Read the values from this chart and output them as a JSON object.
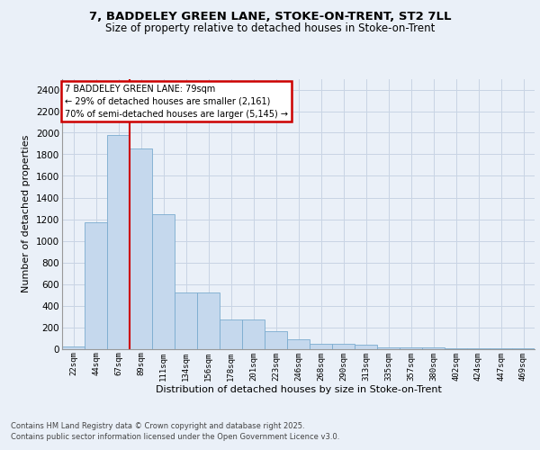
{
  "title_line1": "7, BADDELEY GREEN LANE, STOKE-ON-TRENT, ST2 7LL",
  "title_line2": "Size of property relative to detached houses in Stoke-on-Trent",
  "xlabel": "Distribution of detached houses by size in Stoke-on-Trent",
  "ylabel": "Number of detached properties",
  "categories": [
    "22sqm",
    "44sqm",
    "67sqm",
    "89sqm",
    "111sqm",
    "134sqm",
    "156sqm",
    "178sqm",
    "201sqm",
    "223sqm",
    "246sqm",
    "268sqm",
    "290sqm",
    "313sqm",
    "335sqm",
    "357sqm",
    "380sqm",
    "402sqm",
    "424sqm",
    "447sqm",
    "469sqm"
  ],
  "values": [
    25,
    1170,
    1980,
    1850,
    1250,
    520,
    520,
    270,
    270,
    160,
    85,
    45,
    45,
    35,
    15,
    15,
    10,
    5,
    5,
    5,
    2
  ],
  "bar_color": "#c5d8ed",
  "bar_edge_color": "#7aabcf",
  "grid_color": "#c8d4e4",
  "bg_color": "#eaf0f8",
  "red_line_x": 2.5,
  "annotation_text": "7 BADDELEY GREEN LANE: 79sqm\n← 29% of detached houses are smaller (2,161)\n70% of semi-detached houses are larger (5,145) →",
  "annotation_box_color": "#ffffff",
  "annotation_border_color": "#cc0000",
  "footnote1": "Contains HM Land Registry data © Crown copyright and database right 2025.",
  "footnote2": "Contains public sector information licensed under the Open Government Licence v3.0.",
  "ylim": [
    0,
    2500
  ],
  "yticks": [
    0,
    200,
    400,
    600,
    800,
    1000,
    1200,
    1400,
    1600,
    1800,
    2000,
    2200,
    2400
  ]
}
